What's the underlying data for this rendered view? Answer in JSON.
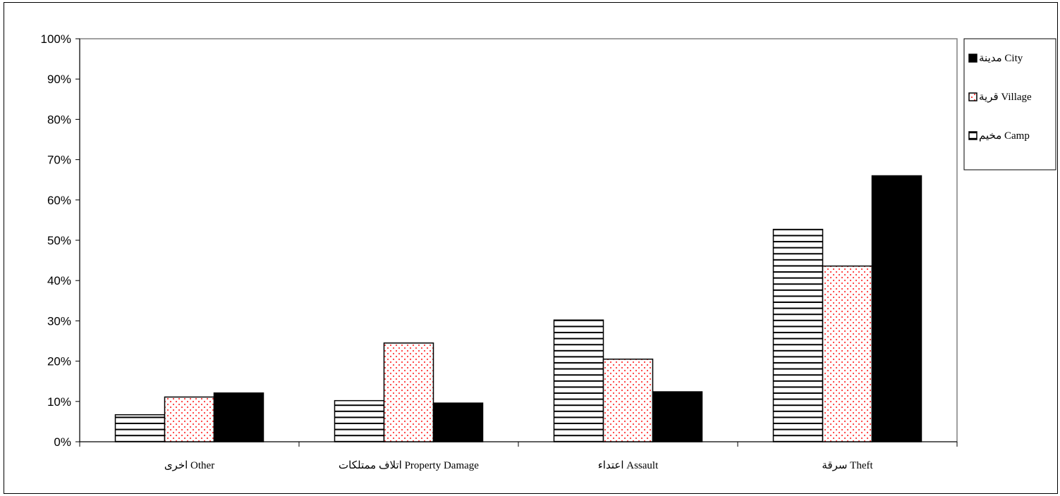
{
  "chart_data": {
    "type": "bar",
    "categories": [
      "اخرى Other",
      "اتلاف ممتلكات Property Damage",
      "اعتداء Assault",
      "سرقة Theft"
    ],
    "series": [
      {
        "name": "مخيم Camp",
        "values": [
          6.7,
          10.2,
          30.2,
          52.7
        ],
        "fill": "hatch-horizontal"
      },
      {
        "name": "قرية Village",
        "values": [
          11.1,
          24.5,
          20.5,
          43.6
        ],
        "fill": "dots-red"
      },
      {
        "name": "مدينة City",
        "values": [
          12.1,
          9.6,
          12.4,
          66.0
        ],
        "fill": "solid-black"
      }
    ],
    "legend_order": [
      "مدينة City",
      "قرية Village",
      "مخيم Camp"
    ],
    "y_ticks": [
      "0%",
      "10%",
      "20%",
      "30%",
      "40%",
      "50%",
      "60%",
      "70%",
      "80%",
      "90%",
      "100%"
    ],
    "ylim": [
      0,
      100
    ],
    "legend_position": "right",
    "grid": false,
    "colors": {
      "black": "#000000",
      "dot_red": "#ff3b3b",
      "white": "#ffffff"
    }
  }
}
